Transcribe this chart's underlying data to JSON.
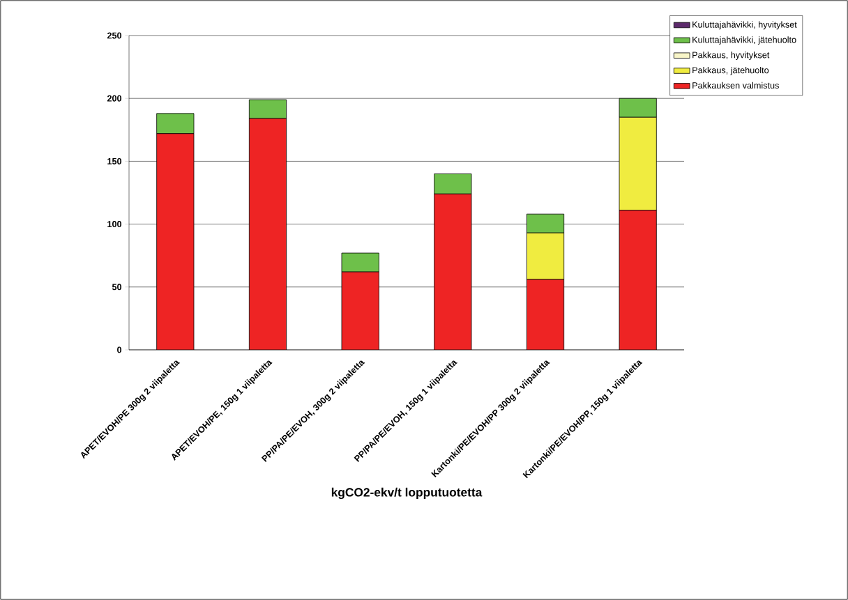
{
  "chart_data": {
    "type": "bar",
    "stacked": true,
    "xlabel": "kgCO2-ekv/t lopputuotetta",
    "categories": [
      "APET/EVOH/PE 300g 2 viipaletta",
      "APET/EVOH/PE, 150g 1 viipaletta",
      "PP/PA/PE/EVOH, 300g 2 viipaletta",
      "PP/PA/PE/EVOH, 150g 1 viipaletta",
      "Kartonki/PE/EVOH/PP 300g 2 viipaletta",
      "Kartonki/PE/EVOH/PP, 150g 1 viipaletta"
    ],
    "series": [
      {
        "name": "Pakkauksen valmistus",
        "color": "#ee2424",
        "values": [
          172,
          184,
          62,
          124,
          56,
          111
        ]
      },
      {
        "name": "Pakkaus, jätehuolto",
        "color": "#f0ec40",
        "values": [
          0,
          0,
          0,
          0,
          37,
          74
        ]
      },
      {
        "name": "Pakkaus, hyvitykset",
        "color": "#f8f5c8",
        "values": [
          0,
          0,
          0,
          0,
          0,
          0
        ]
      },
      {
        "name": "Kuluttajahävikki, jätehuolto",
        "color": "#6ec04a",
        "values": [
          16,
          15,
          15,
          16,
          15,
          15
        ]
      },
      {
        "name": "Kuluttajahävikki, hyvitykset",
        "color": "#5c2a6b",
        "values": [
          0,
          0,
          0,
          0,
          0,
          0
        ]
      }
    ],
    "ylim": [
      0,
      250
    ],
    "yticks": [
      0,
      50,
      100,
      150,
      200,
      250
    ],
    "grid": "y",
    "legend": "top right"
  }
}
